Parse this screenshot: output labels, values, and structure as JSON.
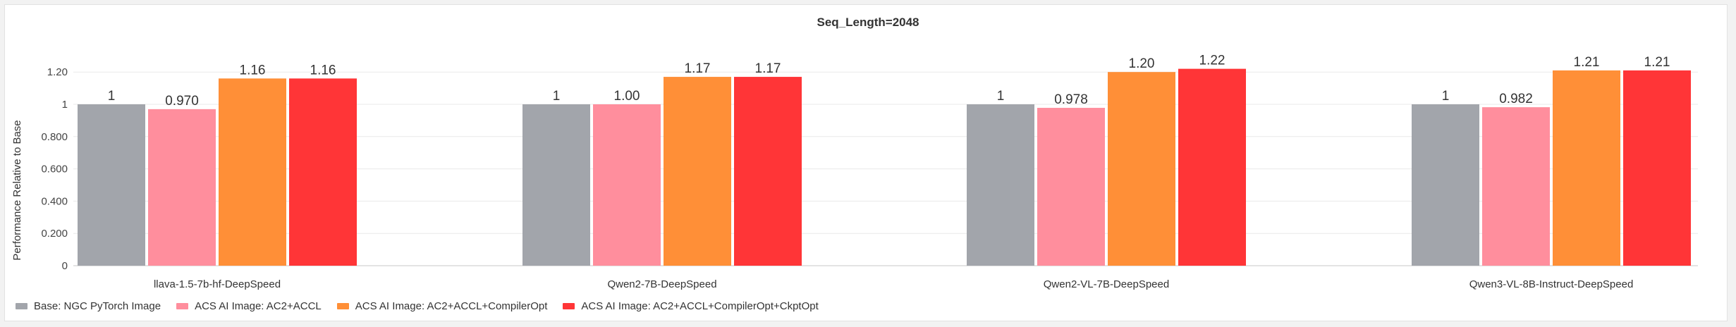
{
  "chart_data": {
    "type": "bar",
    "title": "Seq_Length=2048",
    "xlabel": "",
    "ylabel": "Performance Relative to Base",
    "ylim": [
      0,
      1.26
    ],
    "y_ticks": [
      {
        "value": 0,
        "label": "0"
      },
      {
        "value": 0.2,
        "label": "0.200"
      },
      {
        "value": 0.4,
        "label": "0.400"
      },
      {
        "value": 0.6,
        "label": "0.600"
      },
      {
        "value": 0.8,
        "label": "0.800"
      },
      {
        "value": 1.0,
        "label": "1"
      },
      {
        "value": 1.2,
        "label": "1.20"
      }
    ],
    "grid": true,
    "legend_position": "bottom-left",
    "categories": [
      "llava-1.5-7b-hf-DeepSpeed",
      "Qwen2-7B-DeepSpeed",
      "Qwen2-VL-7B-DeepSpeed",
      "Qwen3-VL-8B-Instruct-DeepSpeed"
    ],
    "series": [
      {
        "name": "Base: NGC PyTorch Image",
        "color": "#a2a5ab",
        "values": [
          1,
          1,
          1,
          1
        ],
        "labels": [
          "1",
          "1",
          "1",
          "1"
        ]
      },
      {
        "name": "ACS AI Image: AC2+ACCL",
        "color": "#ff8e9d",
        "values": [
          0.97,
          1.0,
          0.978,
          0.982
        ],
        "labels": [
          "0.970",
          "1.00",
          "0.978",
          "0.982"
        ]
      },
      {
        "name": "ACS AI Image: AC2+ACCL+CompilerOpt",
        "color": "#ff8f37",
        "values": [
          1.16,
          1.17,
          1.2,
          1.21
        ],
        "labels": [
          "1.16",
          "1.17",
          "1.20",
          "1.21"
        ]
      },
      {
        "name": "ACS AI Image: AC2+ACCL+CompilerOpt+CkptOpt",
        "color": "#ff3537",
        "values": [
          1.16,
          1.17,
          1.22,
          1.21
        ],
        "labels": [
          "1.16",
          "1.17",
          "1.22",
          "1.21"
        ]
      }
    ]
  }
}
